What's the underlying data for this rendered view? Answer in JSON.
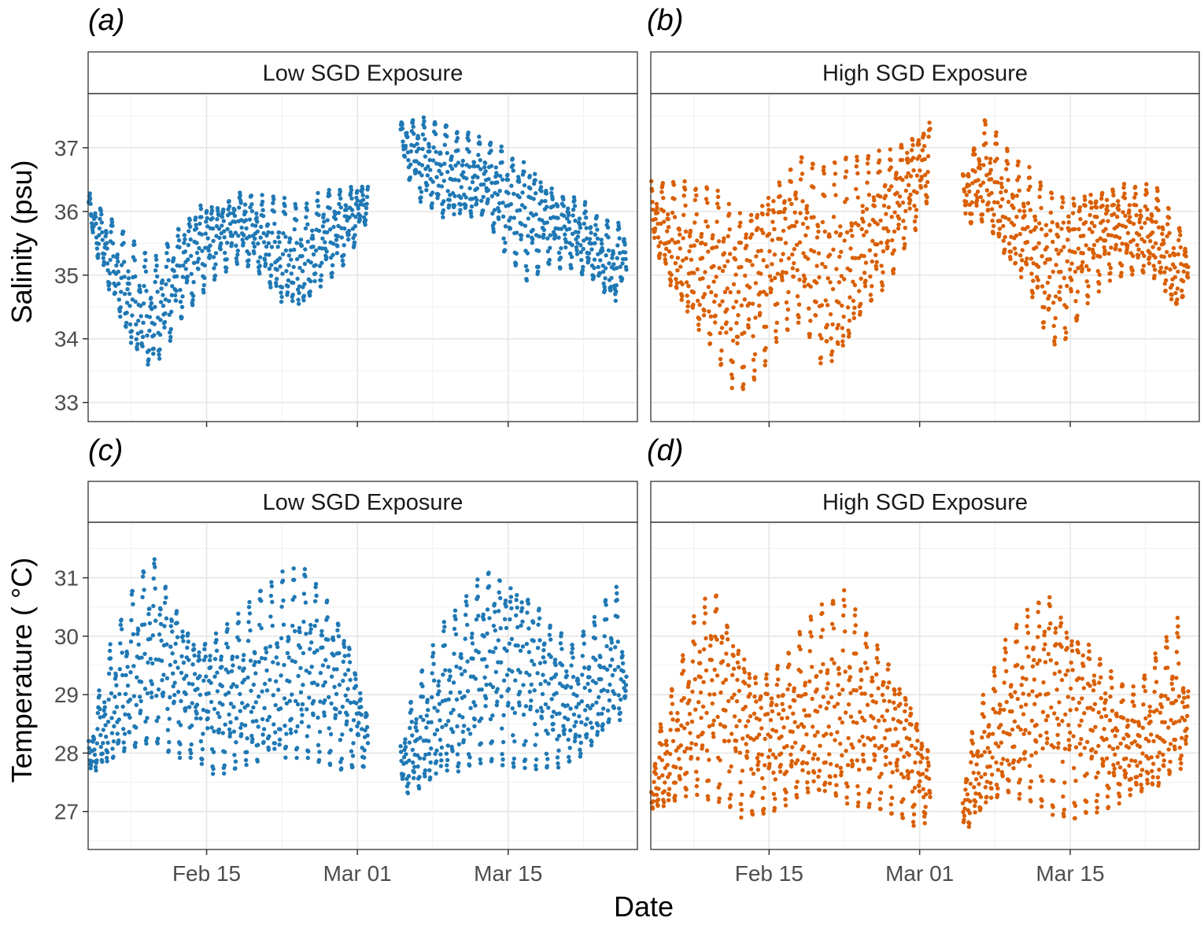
{
  "figure": {
    "xlabel": "Date",
    "colors": {
      "low": "#1f78b4",
      "high": "#d95f02"
    }
  },
  "chart_data": [
    {
      "type": "scatter",
      "panel_letter": "(a)",
      "facet": "Low SGD Exposure",
      "ylabel": "Salinity (psu)",
      "ylim": [
        32.7,
        37.85
      ],
      "yticks": [
        33,
        34,
        35,
        36,
        37
      ],
      "xlim": [
        "2023-02-04",
        "2023-03-27"
      ],
      "xticks": [
        "Feb 15",
        "Mar 01",
        "Mar 15"
      ],
      "gap": [
        "2023-03-02",
        "2023-03-05"
      ],
      "color": "#1f78b4",
      "series": [
        {
          "x": [
            "2023-02-04",
            "2023-02-06",
            "2023-02-08",
            "2023-02-10",
            "2023-02-12",
            "2023-02-14",
            "2023-02-16",
            "2023-02-18",
            "2023-02-20",
            "2023-02-22",
            "2023-02-24",
            "2023-02-26",
            "2023-02-28",
            "2023-03-02",
            "2023-03-05",
            "2023-03-07",
            "2023-03-09",
            "2023-03-11",
            "2023-03-13",
            "2023-03-15",
            "2023-03-17",
            "2023-03-19",
            "2023-03-21",
            "2023-03-23",
            "2023-03-25",
            "2023-03-26"
          ],
          "y": [
            36.0,
            35.3,
            34.6,
            34.3,
            34.9,
            35.4,
            35.6,
            35.8,
            35.6,
            35.3,
            35.2,
            35.6,
            35.8,
            36.2,
            37.1,
            36.8,
            36.6,
            36.5,
            36.5,
            36.1,
            35.9,
            35.8,
            35.7,
            35.4,
            35.1,
            35.4
          ],
          "amp": [
            0.25,
            0.6,
            0.85,
            0.85,
            0.75,
            0.75,
            0.55,
            0.55,
            0.6,
            0.8,
            0.8,
            0.7,
            0.6,
            0.25,
            0.35,
            0.65,
            0.75,
            0.65,
            0.6,
            0.85,
            0.9,
            0.6,
            0.55,
            0.55,
            0.6,
            0.4
          ]
        }
      ]
    },
    {
      "type": "scatter",
      "panel_letter": "(b)",
      "facet": "High SGD Exposure",
      "ylabel": "",
      "ylim": [
        32.7,
        37.85
      ],
      "yticks": [
        33,
        34,
        35,
        36,
        37
      ],
      "xlim": [
        "2023-02-04",
        "2023-03-27"
      ],
      "xticks": [
        "Feb 15",
        "Mar 01",
        "Mar 15"
      ],
      "gap": [
        "2023-03-02",
        "2023-03-05"
      ],
      "color": "#d95f02",
      "series": [
        {
          "x": [
            "2023-02-04",
            "2023-02-06",
            "2023-02-08",
            "2023-02-10",
            "2023-02-12",
            "2023-02-14",
            "2023-02-16",
            "2023-02-18",
            "2023-02-20",
            "2023-02-22",
            "2023-02-24",
            "2023-02-26",
            "2023-02-28",
            "2023-03-02",
            "2023-03-05",
            "2023-03-07",
            "2023-03-09",
            "2023-03-11",
            "2023-03-13",
            "2023-03-15",
            "2023-03-17",
            "2023-03-19",
            "2023-03-21",
            "2023-03-23",
            "2023-03-25",
            "2023-03-26"
          ],
          "y": [
            36.0,
            35.5,
            35.2,
            35.0,
            34.6,
            34.9,
            35.4,
            35.6,
            35.0,
            35.1,
            35.6,
            35.9,
            36.4,
            36.9,
            36.2,
            36.6,
            36.0,
            35.7,
            35.1,
            35.2,
            35.6,
            35.7,
            35.7,
            35.6,
            35.0,
            35.3
          ],
          "amp": [
            0.4,
            0.9,
            1.1,
            1.3,
            1.4,
            1.4,
            1.2,
            1.3,
            1.6,
            1.6,
            1.2,
            1.0,
            0.8,
            0.6,
            0.4,
            0.8,
            0.9,
            0.9,
            1.2,
            1.1,
            0.8,
            0.7,
            0.7,
            0.7,
            0.7,
            0.4
          ]
        }
      ]
    },
    {
      "type": "scatter",
      "panel_letter": "(c)",
      "facet": "Low SGD Exposure",
      "ylabel": "Temperature ( °C)",
      "ylim": [
        26.35,
        31.95
      ],
      "yticks": [
        27,
        28,
        29,
        30,
        31
      ],
      "xlim": [
        "2023-02-04",
        "2023-03-27"
      ],
      "xticks": [
        "Feb 15",
        "Mar 01",
        "Mar 15"
      ],
      "gap": [
        "2023-03-02",
        "2023-03-05"
      ],
      "color": "#1f78b4",
      "series": [
        {
          "x": [
            "2023-02-04",
            "2023-02-06",
            "2023-02-08",
            "2023-02-10",
            "2023-02-12",
            "2023-02-14",
            "2023-02-16",
            "2023-02-18",
            "2023-02-20",
            "2023-02-22",
            "2023-02-24",
            "2023-02-26",
            "2023-02-28",
            "2023-03-02",
            "2023-03-05",
            "2023-03-07",
            "2023-03-09",
            "2023-03-11",
            "2023-03-13",
            "2023-03-15",
            "2023-03-17",
            "2023-03-19",
            "2023-03-21",
            "2023-03-23",
            "2023-03-25",
            "2023-03-26"
          ],
          "y": [
            27.9,
            28.7,
            29.3,
            29.8,
            29.4,
            29.0,
            28.9,
            29.0,
            29.2,
            29.3,
            29.5,
            29.3,
            29.0,
            28.2,
            27.8,
            28.3,
            28.8,
            29.1,
            29.6,
            29.5,
            29.4,
            29.0,
            28.8,
            29.1,
            29.6,
            29.2
          ],
          "amp": [
            0.3,
            1.0,
            1.4,
            1.6,
            1.3,
            1.0,
            1.2,
            1.3,
            1.5,
            1.6,
            1.6,
            1.4,
            1.2,
            0.4,
            0.5,
            1.0,
            1.3,
            1.5,
            1.6,
            1.6,
            1.5,
            1.2,
            1.0,
            1.1,
            1.2,
            0.5
          ]
        }
      ]
    },
    {
      "type": "scatter",
      "panel_letter": "(d)",
      "facet": "High SGD Exposure",
      "ylabel": "",
      "ylim": [
        26.35,
        31.95
      ],
      "yticks": [
        27,
        28,
        29,
        30,
        31
      ],
      "xlim": [
        "2023-02-04",
        "2023-03-27"
      ],
      "xticks": [
        "Feb 15",
        "Mar 01",
        "Mar 15"
      ],
      "gap": [
        "2023-03-02",
        "2023-03-05"
      ],
      "color": "#d95f02",
      "series": [
        {
          "x": [
            "2023-02-04",
            "2023-02-06",
            "2023-02-08",
            "2023-02-10",
            "2023-02-12",
            "2023-02-14",
            "2023-02-16",
            "2023-02-18",
            "2023-02-20",
            "2023-02-22",
            "2023-02-24",
            "2023-02-26",
            "2023-02-28",
            "2023-03-02",
            "2023-03-05",
            "2023-03-07",
            "2023-03-09",
            "2023-03-11",
            "2023-03-13",
            "2023-03-15",
            "2023-03-17",
            "2023-03-19",
            "2023-03-21",
            "2023-03-23",
            "2023-03-25",
            "2023-03-26"
          ],
          "y": [
            27.4,
            28.0,
            28.8,
            29.1,
            28.6,
            28.2,
            28.3,
            28.6,
            28.7,
            28.8,
            28.6,
            28.4,
            28.0,
            27.4,
            27.2,
            27.9,
            28.5,
            28.8,
            29.0,
            28.7,
            28.5,
            28.2,
            28.1,
            28.4,
            28.9,
            28.5
          ],
          "amp": [
            0.5,
            1.0,
            1.5,
            1.8,
            1.5,
            1.2,
            1.2,
            1.4,
            1.7,
            1.8,
            1.5,
            1.3,
            1.1,
            0.5,
            0.6,
            1.0,
            1.3,
            1.6,
            1.9,
            1.7,
            1.4,
            1.1,
            0.9,
            1.2,
            1.3,
            0.6
          ]
        }
      ]
    }
  ]
}
